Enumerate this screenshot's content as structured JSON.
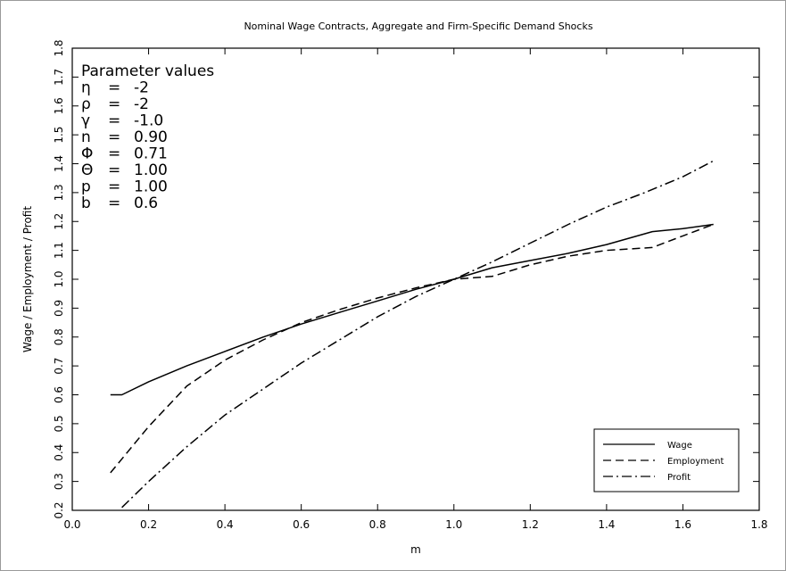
{
  "chart_data": {
    "type": "line",
    "title": "Nominal Wage Contracts, Aggregate and Firm-Specific Demand Shocks",
    "xlabel": "m",
    "ylabel": "Wage / Employment / Profit",
    "xlim": [
      0.0,
      1.8
    ],
    "ylim": [
      0.2,
      1.8
    ],
    "xticks": [
      "0.0",
      "0.2",
      "0.4",
      "0.6",
      "0.8",
      "1.0",
      "1.2",
      "1.4",
      "1.6",
      "1.8"
    ],
    "yticks": [
      "0.2",
      "0.3",
      "0.4",
      "0.5",
      "0.6",
      "0.7",
      "0.8",
      "0.9",
      "1.0",
      "1.1",
      "1.2",
      "1.3",
      "1.4",
      "1.5",
      "1.6",
      "1.7",
      "1.8"
    ],
    "grid": false,
    "legend_position": "bottom-right",
    "annotation": {
      "heading": "Parameter values",
      "rows": [
        {
          "symbol": "η",
          "eq": "=",
          "value": "-2"
        },
        {
          "symbol": "ρ",
          "eq": "=",
          "value": "-2"
        },
        {
          "symbol": "γ",
          "eq": "=",
          "value": "-1.0"
        },
        {
          "symbol": "n",
          "eq": "=",
          "value": "0.90"
        },
        {
          "symbol": "Φ",
          "eq": "=",
          "value": "0.71"
        },
        {
          "symbol": "Θ",
          "eq": "=",
          "value": "1.00"
        },
        {
          "symbol": "p",
          "eq": "=",
          "value": "1.00"
        },
        {
          "symbol": "b",
          "eq": "=",
          "value": "0.6"
        }
      ]
    },
    "series": [
      {
        "name": "Wage",
        "style": "solid",
        "x": [
          0.1,
          0.13,
          0.2,
          0.3,
          0.4,
          0.5,
          0.6,
          0.7,
          0.8,
          0.9,
          1.0,
          1.1,
          1.2,
          1.3,
          1.4,
          1.52,
          1.6,
          1.68
        ],
        "y": [
          0.6,
          0.6,
          0.645,
          0.7,
          0.75,
          0.8,
          0.845,
          0.885,
          0.925,
          0.965,
          1.0,
          1.04,
          1.065,
          1.09,
          1.12,
          1.165,
          1.175,
          1.19
        ]
      },
      {
        "name": "Employment",
        "style": "dashed",
        "x": [
          0.1,
          0.2,
          0.3,
          0.4,
          0.5,
          0.6,
          0.7,
          0.8,
          0.9,
          1.0,
          1.1,
          1.2,
          1.3,
          1.4,
          1.52,
          1.6,
          1.68
        ],
        "y": [
          0.33,
          0.49,
          0.63,
          0.72,
          0.79,
          0.85,
          0.895,
          0.935,
          0.97,
          1.0,
          1.01,
          1.05,
          1.08,
          1.1,
          1.11,
          1.15,
          1.19
        ]
      },
      {
        "name": "Profit",
        "style": "dashdot",
        "x": [
          0.13,
          0.2,
          0.3,
          0.4,
          0.5,
          0.6,
          0.7,
          0.8,
          0.9,
          1.0,
          1.1,
          1.2,
          1.3,
          1.4,
          1.5,
          1.6,
          1.68
        ],
        "y": [
          0.21,
          0.3,
          0.42,
          0.53,
          0.62,
          0.71,
          0.79,
          0.87,
          0.94,
          1.0,
          1.06,
          1.125,
          1.19,
          1.25,
          1.3,
          1.355,
          1.41
        ]
      }
    ]
  }
}
